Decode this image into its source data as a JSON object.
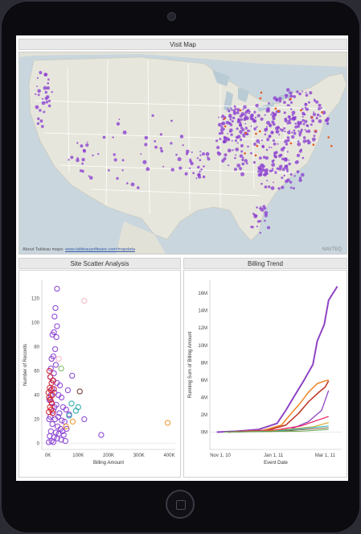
{
  "map": {
    "title": "Visit Map",
    "attribution_prefix": "About Tableau maps: ",
    "attribution_link": "www.tableausoftware.com/mapdata",
    "watermark": "NAVTEQ",
    "colors": {
      "land": "#e7e6dc",
      "water": "#c9d6dd",
      "lakes": "#b9cbd4",
      "visit_dot": "#8a3fd1",
      "hot_dot": "#e8581c",
      "state_border": "#ffffff"
    }
  },
  "scatter": {
    "title": "Site Scatter Analysis",
    "colors": {
      "purple": "#8a3fd1",
      "red": "#d11f2c",
      "green": "#7bb661",
      "teal": "#21a6a6",
      "orange": "#f0942a",
      "brown": "#6e2d2d",
      "pink": "#f2b7c3"
    }
  },
  "trend": {
    "title": "Billing Trend"
  },
  "chart_data": [
    {
      "type": "scatter",
      "title": "Site Scatter Analysis",
      "xlabel": "Billing Amount",
      "ylabel": "Number of Records",
      "xlim": [
        -20000,
        420000
      ],
      "ylim": [
        -5,
        135
      ],
      "x_ticks": [
        {
          "v": 0,
          "label": "0K"
        },
        {
          "v": 100000,
          "label": "100K"
        },
        {
          "v": 200000,
          "label": "200K"
        },
        {
          "v": 300000,
          "label": "300K"
        },
        {
          "v": 400000,
          "label": "400K"
        }
      ],
      "y_ticks": [
        0,
        20,
        40,
        60,
        80,
        100,
        120
      ],
      "series": [
        {
          "color": "purple",
          "points": [
            [
              30000,
              128
            ],
            [
              25000,
              112
            ],
            [
              22000,
              105
            ],
            [
              30000,
              97
            ],
            [
              20000,
              92
            ],
            [
              28000,
              88
            ],
            [
              15000,
              90
            ],
            [
              24000,
              78
            ],
            [
              18000,
              72
            ],
            [
              12000,
              70
            ],
            [
              26000,
              65
            ],
            [
              10000,
              62
            ],
            [
              20000,
              58
            ],
            [
              8000,
              55
            ],
            [
              16000,
              52
            ],
            [
              30000,
              50
            ],
            [
              40000,
              48
            ],
            [
              14000,
              45
            ],
            [
              22000,
              42
            ],
            [
              35000,
              40
            ],
            [
              45000,
              38
            ],
            [
              5000,
              36
            ],
            [
              12000,
              34
            ],
            [
              28000,
              32
            ],
            [
              50000,
              30
            ],
            [
              60000,
              28
            ],
            [
              18000,
              27
            ],
            [
              38000,
              25
            ],
            [
              70000,
              24
            ],
            [
              8000,
              22
            ],
            [
              24000,
              20
            ],
            [
              46000,
              19
            ],
            [
              55000,
              18
            ],
            [
              15000,
              16
            ],
            [
              32000,
              14
            ],
            [
              42000,
              12
            ],
            [
              62000,
              12
            ],
            [
              10000,
              10
            ],
            [
              26000,
              9
            ],
            [
              36000,
              8
            ],
            [
              52000,
              7
            ],
            [
              6000,
              6
            ],
            [
              20000,
              5
            ],
            [
              30000,
              4
            ],
            [
              44000,
              3
            ],
            [
              12000,
              2
            ],
            [
              3000,
              1
            ],
            [
              18000,
              1
            ],
            [
              58000,
              2
            ],
            [
              120000,
              20
            ],
            [
              176000,
              7
            ],
            [
              80000,
              56
            ],
            [
              66000,
              44
            ],
            [
              10000,
              40
            ],
            [
              22000,
              30
            ],
            [
              4000,
              20
            ],
            [
              34000,
              22
            ],
            [
              48000,
              10
            ]
          ]
        },
        {
          "color": "red",
          "points": [
            [
              5000,
              60
            ],
            [
              8000,
              55
            ],
            [
              12000,
              50
            ],
            [
              6000,
              46
            ],
            [
              10000,
              44
            ],
            [
              15000,
              40
            ],
            [
              4000,
              38
            ],
            [
              9000,
              36
            ],
            [
              13000,
              33
            ],
            [
              7000,
              30
            ],
            [
              11000,
              28
            ],
            [
              3000,
              26
            ],
            [
              16000,
              25
            ],
            [
              20000,
              45
            ],
            [
              18000,
              52
            ],
            [
              2000,
              42
            ]
          ]
        },
        {
          "color": "green",
          "points": [
            [
              44000,
              62
            ]
          ]
        },
        {
          "color": "brown",
          "points": [
            [
              105000,
              43
            ]
          ]
        },
        {
          "color": "teal",
          "points": [
            [
              78000,
              33
            ],
            [
              100000,
              30
            ],
            [
              92000,
              27
            ],
            [
              70000,
              23
            ]
          ]
        },
        {
          "color": "orange",
          "points": [
            [
              82000,
              18
            ],
            [
              395000,
              17
            ],
            [
              60000,
              14
            ]
          ]
        },
        {
          "color": "pink",
          "points": [
            [
              120000,
              118
            ],
            [
              36000,
              70
            ]
          ]
        }
      ]
    },
    {
      "type": "line",
      "title": "Billing Trend",
      "xlabel": "Event Date",
      "ylabel": "Running Sum of Billing Amount",
      "xlim": [
        "2010-10-20",
        "2011-03-20"
      ],
      "ylim": [
        -2000000,
        17500000
      ],
      "x_ticks": [
        {
          "date": "2010-11-01",
          "label": "Nov 1, 10"
        },
        {
          "date": "2011-01-01",
          "label": "Jan 1, 11"
        },
        {
          "date": "2011-03-01",
          "label": "Mar 1, 11"
        }
      ],
      "y_ticks": [
        {
          "v": 0,
          "label": "0M"
        },
        {
          "v": 2000000,
          "label": "2M"
        },
        {
          "v": 4000000,
          "label": "4M"
        },
        {
          "v": 6000000,
          "label": "6M"
        },
        {
          "v": 8000000,
          "label": "8M"
        },
        {
          "v": 10000000,
          "label": "10M"
        },
        {
          "v": 12000000,
          "label": "12M"
        },
        {
          "v": 14000000,
          "label": "14M"
        },
        {
          "v": 16000000,
          "label": "16M"
        }
      ],
      "series": [
        {
          "color": "#8e44c4",
          "width": 2,
          "points": [
            [
              "2010-10-28",
              0
            ],
            [
              "2010-11-20",
              100000
            ],
            [
              "2010-12-15",
              300000
            ],
            [
              "2011-01-05",
              1000000
            ],
            [
              "2011-01-15",
              2500000
            ],
            [
              "2011-01-25",
              4200000
            ],
            [
              "2011-02-05",
              6000000
            ],
            [
              "2011-02-15",
              7800000
            ],
            [
              "2011-02-20",
              10500000
            ],
            [
              "2011-02-28",
              12400000
            ],
            [
              "2011-03-05",
              15200000
            ],
            [
              "2011-03-15",
              16800000
            ]
          ]
        },
        {
          "color": "#f08a30",
          "width": 1.6,
          "points": [
            [
              "2010-11-10",
              0
            ],
            [
              "2010-12-20",
              200000
            ],
            [
              "2011-01-10",
              800000
            ],
            [
              "2011-01-20",
              2000000
            ],
            [
              "2011-02-01",
              3400000
            ],
            [
              "2011-02-10",
              4600000
            ],
            [
              "2011-02-20",
              5600000
            ],
            [
              "2011-03-01",
              5900000
            ],
            [
              "2011-03-05",
              6000000
            ]
          ]
        },
        {
          "color": "#c0392b",
          "width": 1.6,
          "points": [
            [
              "2010-11-10",
              0
            ],
            [
              "2010-12-25",
              200000
            ],
            [
              "2011-01-15",
              800000
            ],
            [
              "2011-01-30",
              2200000
            ],
            [
              "2011-02-10",
              3500000
            ],
            [
              "2011-02-22",
              4600000
            ],
            [
              "2011-03-01",
              5200000
            ],
            [
              "2011-03-05",
              5900000
            ]
          ]
        },
        {
          "color": "#8e44c4",
          "width": 1.3,
          "points": [
            [
              "2010-11-15",
              0
            ],
            [
              "2011-01-20",
              300000
            ],
            [
              "2011-02-10",
              1200000
            ],
            [
              "2011-02-25",
              2500000
            ],
            [
              "2011-03-05",
              4800000
            ]
          ]
        },
        {
          "color": "#e91e63",
          "width": 1.2,
          "points": [
            [
              "2010-11-10",
              0
            ],
            [
              "2011-01-01",
              200000
            ],
            [
              "2011-02-01",
              700000
            ],
            [
              "2011-03-05",
              1800000
            ]
          ]
        },
        {
          "color": "#d4a017",
          "width": 1,
          "points": [
            [
              "2010-11-10",
              0
            ],
            [
              "2011-01-01",
              150000
            ],
            [
              "2011-02-15",
              600000
            ],
            [
              "2011-03-05",
              1100000
            ]
          ]
        },
        {
          "color": "#2ab0b0",
          "width": 1,
          "points": [
            [
              "2010-11-05",
              0
            ],
            [
              "2011-01-01",
              100000
            ],
            [
              "2011-03-05",
              700000
            ]
          ]
        },
        {
          "color": "#7a5c3c",
          "width": 1,
          "points": [
            [
              "2010-11-05",
              0
            ],
            [
              "2011-01-10",
              100000
            ],
            [
              "2011-03-05",
              500000
            ]
          ]
        },
        {
          "color": "#6aa84f",
          "width": 1,
          "points": [
            [
              "2010-11-05",
              0
            ],
            [
              "2011-02-01",
              100000
            ],
            [
              "2011-03-05",
              300000
            ]
          ]
        }
      ]
    }
  ]
}
